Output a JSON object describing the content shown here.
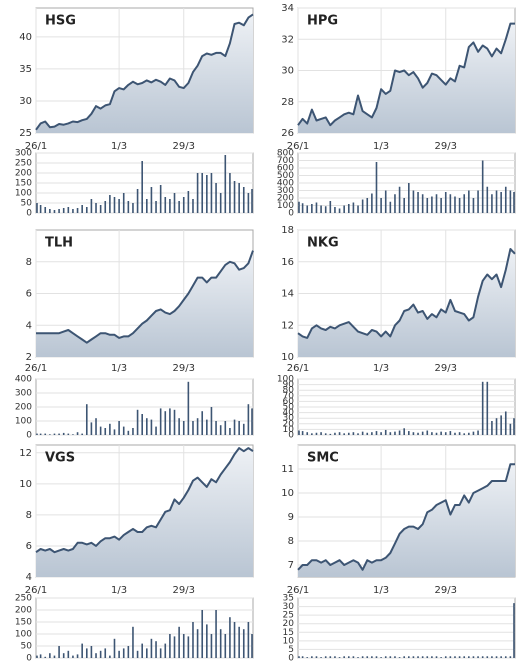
{
  "chart_data": [
    {
      "type": "stock",
      "title": "HSG",
      "color": "#3d5573",
      "categories": [
        "26/1",
        null,
        null,
        null,
        null,
        null,
        null,
        null,
        null,
        null,
        null,
        null,
        null,
        null,
        null,
        null,
        null,
        null,
        "1/3",
        null,
        null,
        null,
        null,
        null,
        null,
        null,
        null,
        null,
        null,
        null,
        null,
        null,
        "29/3",
        null,
        null,
        null,
        null,
        null,
        null,
        null,
        null,
        null,
        null,
        null,
        null,
        null,
        null,
        null
      ],
      "price": {
        "values": [
          25.5,
          26.5,
          26.8,
          25.9,
          26,
          26.4,
          26.3,
          26.5,
          26.8,
          26.7,
          27,
          27.2,
          28,
          29.2,
          28.8,
          29.3,
          29.5,
          31.5,
          32,
          31.8,
          32.5,
          33,
          32.6,
          32.8,
          33.2,
          32.9,
          33.3,
          33,
          32.5,
          33.5,
          33.2,
          32.2,
          32,
          32.8,
          34.5,
          35.5,
          37,
          37.4,
          37.2,
          37.5,
          37.5,
          37,
          39,
          42,
          42.2,
          41.8,
          43,
          43.5
        ],
        "ylim": [
          25,
          44.5
        ],
        "yticks": [
          25,
          30,
          35,
          40
        ]
      },
      "volume": {
        "values": [
          50,
          40,
          30,
          20,
          15,
          20,
          25,
          30,
          20,
          25,
          40,
          30,
          70,
          50,
          40,
          60,
          90,
          80,
          70,
          100,
          60,
          50,
          120,
          260,
          70,
          130,
          60,
          140,
          80,
          70,
          100,
          60,
          80,
          110,
          70,
          200,
          200,
          190,
          200,
          150,
          100,
          290,
          200,
          160,
          150,
          130,
          100,
          120
        ],
        "ylim": [
          0,
          300
        ],
        "yticks": [
          0,
          50,
          100,
          150,
          200,
          250,
          300
        ]
      }
    },
    {
      "type": "stock",
      "title": "HPG",
      "color": "#3d5573",
      "categories": [
        "26/1",
        null,
        null,
        null,
        null,
        null,
        null,
        null,
        null,
        null,
        null,
        null,
        null,
        null,
        null,
        null,
        null,
        null,
        "1/3",
        null,
        null,
        null,
        null,
        null,
        null,
        null,
        null,
        null,
        null,
        null,
        null,
        null,
        "29/3",
        null,
        null,
        null,
        null,
        null,
        null,
        null,
        null,
        null,
        null,
        null,
        null,
        null,
        null,
        null
      ],
      "price": {
        "values": [
          26.5,
          26.9,
          26.6,
          27.5,
          26.8,
          26.9,
          27,
          26.5,
          26.8,
          27,
          27.2,
          27.3,
          27.2,
          28.4,
          27.4,
          27.2,
          27,
          27.6,
          28.8,
          28.5,
          28.7,
          30,
          29.9,
          30,
          29.7,
          29.9,
          29.5,
          28.9,
          29.2,
          29.8,
          29.7,
          29.4,
          29.1,
          29.5,
          29.3,
          30.3,
          30.2,
          31.5,
          31.8,
          31.2,
          31.6,
          31.4,
          30.9,
          31.4,
          31.1,
          32,
          33,
          33
        ],
        "ylim": [
          26,
          34
        ],
        "yticks": [
          26,
          28,
          30,
          32,
          34
        ]
      },
      "volume": {
        "values": [
          150,
          130,
          100,
          120,
          140,
          100,
          90,
          160,
          80,
          60,
          100,
          120,
          140,
          100,
          180,
          200,
          260,
          680,
          200,
          300,
          150,
          250,
          350,
          200,
          400,
          300,
          280,
          250,
          200,
          220,
          250,
          200,
          280,
          250,
          220,
          200,
          250,
          300,
          200,
          300,
          700,
          350,
          250,
          300,
          280,
          350,
          300,
          280
        ],
        "ylim": [
          0,
          800
        ],
        "yticks": [
          0,
          100,
          200,
          300,
          400,
          500,
          600,
          700,
          800
        ]
      }
    },
    {
      "type": "stock",
      "title": "TLH",
      "color": "#3d5573",
      "categories": [
        "26/1",
        null,
        null,
        null,
        null,
        null,
        null,
        null,
        null,
        null,
        null,
        null,
        null,
        null,
        null,
        null,
        null,
        null,
        "1/3",
        null,
        null,
        null,
        null,
        null,
        null,
        null,
        null,
        null,
        null,
        null,
        null,
        null,
        "29/3",
        null,
        null,
        null,
        null,
        null,
        null,
        null,
        null,
        null,
        null,
        null,
        null,
        null,
        null,
        null
      ],
      "price": {
        "values": [
          3.5,
          3.5,
          3.5,
          3.5,
          3.5,
          3.5,
          3.6,
          3.7,
          3.5,
          3.3,
          3.1,
          2.9,
          3.1,
          3.3,
          3.5,
          3.5,
          3.4,
          3.4,
          3.2,
          3.3,
          3.3,
          3.5,
          3.8,
          4.1,
          4.3,
          4.6,
          4.9,
          5,
          4.8,
          4.7,
          4.9,
          5.2,
          5.6,
          6,
          6.5,
          7,
          7,
          6.7,
          7,
          7,
          7.4,
          7.8,
          8,
          7.9,
          7.5,
          7.6,
          7.9,
          8.7
        ],
        "ylim": [
          2,
          10
        ],
        "yticks": [
          2,
          4,
          6,
          8
        ]
      },
      "volume": {
        "values": [
          10,
          10,
          10,
          5,
          10,
          10,
          15,
          10,
          5,
          20,
          10,
          220,
          90,
          120,
          60,
          50,
          80,
          40,
          100,
          60,
          30,
          50,
          180,
          150,
          120,
          110,
          60,
          190,
          170,
          190,
          180,
          120,
          100,
          380,
          100,
          120,
          170,
          110,
          200,
          100,
          70,
          100,
          50,
          110,
          100,
          80,
          220,
          190
        ],
        "ylim": [
          0,
          400
        ],
        "yticks": [
          0,
          100,
          200,
          300,
          400
        ]
      }
    },
    {
      "type": "stock",
      "title": "NKG",
      "color": "#3d5573",
      "categories": [
        "26/1",
        null,
        null,
        null,
        null,
        null,
        null,
        null,
        null,
        null,
        null,
        null,
        null,
        null,
        null,
        null,
        null,
        null,
        "1/3",
        null,
        null,
        null,
        null,
        null,
        null,
        null,
        null,
        null,
        null,
        null,
        null,
        null,
        "29/3",
        null,
        null,
        null,
        null,
        null,
        null,
        null,
        null,
        null,
        null,
        null,
        null,
        null,
        null,
        null
      ],
      "price": {
        "values": [
          11.5,
          11.3,
          11.2,
          11.8,
          12,
          11.8,
          11.7,
          11.9,
          11.8,
          12,
          12.1,
          12.2,
          11.9,
          11.6,
          11.5,
          11.4,
          11.7,
          11.6,
          11.3,
          11.6,
          11.3,
          12,
          12.3,
          12.9,
          13,
          13.3,
          12.8,
          12.9,
          12.4,
          12.7,
          12.5,
          13,
          12.8,
          13.6,
          12.9,
          12.8,
          12.7,
          12.3,
          12.5,
          13.8,
          14.8,
          15.2,
          14.9,
          15.2,
          14.4,
          15.5,
          16.8,
          16.5
        ],
        "ylim": [
          10,
          18
        ],
        "yticks": [
          10,
          12,
          14,
          16,
          18
        ]
      },
      "volume": {
        "values": [
          8,
          7,
          5,
          3,
          4,
          5,
          3,
          2,
          4,
          5,
          3,
          4,
          5,
          3,
          6,
          4,
          5,
          7,
          5,
          9,
          5,
          6,
          8,
          12,
          7,
          5,
          4,
          6,
          8,
          5,
          4,
          6,
          5,
          7,
          4,
          5,
          3,
          4,
          6,
          8,
          95,
          95,
          25,
          30,
          35,
          42,
          20,
          30
        ],
        "ylim": [
          0,
          100
        ],
        "yticks": [
          0,
          10,
          20,
          30,
          40,
          50,
          60,
          70,
          80,
          90,
          100
        ]
      }
    },
    {
      "type": "stock",
      "title": "VGS",
      "color": "#3d5573",
      "categories": [
        "26/1",
        null,
        null,
        null,
        null,
        null,
        null,
        null,
        null,
        null,
        null,
        null,
        null,
        null,
        null,
        null,
        null,
        null,
        "1/3",
        null,
        null,
        null,
        null,
        null,
        null,
        null,
        null,
        null,
        null,
        null,
        null,
        null,
        "29/3",
        null,
        null,
        null,
        null,
        null,
        null,
        null,
        null,
        null,
        null,
        null,
        null,
        null,
        null,
        null
      ],
      "price": {
        "values": [
          5.6,
          5.8,
          5.7,
          5.8,
          5.6,
          5.7,
          5.8,
          5.7,
          5.8,
          6.2,
          6.2,
          6.1,
          6.2,
          6,
          6.3,
          6.5,
          6.5,
          6.6,
          6.4,
          6.7,
          6.9,
          7.1,
          6.9,
          6.9,
          7.2,
          7.3,
          7.2,
          7.7,
          8.2,
          8.3,
          9,
          8.7,
          9.1,
          9.6,
          10.2,
          10.4,
          10.1,
          9.8,
          10.3,
          10.1,
          10.6,
          11,
          11.4,
          11.9,
          12.3,
          12.1,
          12.3,
          12.1
        ],
        "ylim": [
          4,
          12.5
        ],
        "yticks": [
          4,
          6,
          8,
          10,
          12
        ]
      },
      "volume": {
        "values": [
          10,
          15,
          5,
          20,
          10,
          50,
          20,
          30,
          10,
          15,
          60,
          40,
          50,
          20,
          30,
          40,
          10,
          80,
          30,
          40,
          50,
          130,
          30,
          60,
          40,
          80,
          70,
          40,
          60,
          100,
          90,
          130,
          100,
          90,
          150,
          120,
          200,
          140,
          100,
          200,
          120,
          100,
          170,
          150,
          130,
          120,
          150,
          100
        ],
        "ylim": [
          0,
          250
        ],
        "yticks": [
          0,
          50,
          100,
          150,
          200,
          250
        ]
      }
    },
    {
      "type": "stock",
      "title": "SMC",
      "color": "#3d5573",
      "categories": [
        "26/1",
        null,
        null,
        null,
        null,
        null,
        null,
        null,
        null,
        null,
        null,
        null,
        null,
        null,
        null,
        null,
        null,
        null,
        "1/3",
        null,
        null,
        null,
        null,
        null,
        null,
        null,
        null,
        null,
        null,
        null,
        null,
        null,
        "29/3",
        null,
        null,
        null,
        null,
        null,
        null,
        null,
        null,
        null,
        null,
        null,
        null,
        null,
        null,
        null
      ],
      "price": {
        "values": [
          6.8,
          7,
          7,
          7.2,
          7.2,
          7.1,
          7.2,
          7,
          7.1,
          7.2,
          7,
          7.1,
          7.2,
          7.1,
          6.8,
          7.2,
          7.1,
          7.2,
          7.2,
          7.3,
          7.5,
          7.9,
          8.3,
          8.5,
          8.6,
          8.6,
          8.5,
          8.7,
          9.2,
          9.3,
          9.5,
          9.6,
          9.7,
          9.1,
          9.5,
          9.5,
          9.9,
          9.6,
          10,
          10.1,
          10.2,
          10.3,
          10.5,
          10.5,
          10.5,
          10.5,
          11.2,
          11.2
        ],
        "ylim": [
          6.5,
          12
        ],
        "yticks": [
          7,
          8,
          9,
          10,
          11
        ]
      },
      "volume": {
        "values": [
          1,
          1,
          0.5,
          1,
          1,
          0.5,
          1,
          1,
          1,
          0.5,
          1,
          1,
          1,
          0.5,
          1,
          1,
          1,
          1,
          0.5,
          1,
          1,
          1,
          0.5,
          1,
          1,
          1,
          1,
          1,
          1,
          1,
          1,
          0.5,
          1,
          1,
          1,
          1,
          1,
          1,
          1,
          1,
          1,
          1,
          1,
          1,
          1,
          1,
          1,
          32
        ],
        "ylim": [
          0,
          35
        ],
        "yticks": [
          0,
          5,
          10,
          15,
          20,
          25,
          30,
          35
        ]
      }
    }
  ]
}
